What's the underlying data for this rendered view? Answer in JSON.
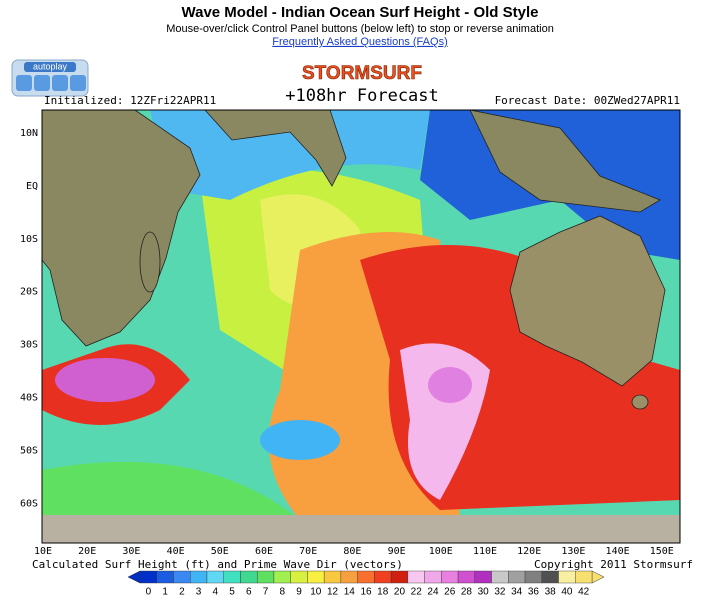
{
  "header": {
    "title": "Wave Model - Indian Ocean Surf Height - Old Style",
    "subtitle": "Mouse-over/click Control Panel buttons (below left) to stop or reverse animation",
    "link": "Frequently Asked Questions (FAQs)"
  },
  "controls": {
    "label": "autoplay"
  },
  "map": {
    "brand": "STORMSURF",
    "forecast": "+108hr Forecast",
    "initialized": "Initialized: 12ZFri22APR11",
    "forecast_date": "Forecast Date: 00ZWed27APR11",
    "lat_labels": [
      "10N",
      "EQ",
      "10S",
      "20S",
      "30S",
      "40S",
      "50S",
      "60S"
    ],
    "lon_labels": [
      "10E",
      "20E",
      "30E",
      "40E",
      "50E",
      "60E",
      "70E",
      "80E",
      "90E",
      "100E",
      "110E",
      "120E",
      "130E",
      "140E",
      "150E"
    ],
    "caption": "Calculated Surf Height (ft) and Prime Wave Dir (vectors)",
    "copyright": "Copyright 2011 Stormsurf"
  },
  "legend": {
    "values": [
      "0",
      "1",
      "2",
      "3",
      "4",
      "5",
      "6",
      "7",
      "8",
      "9",
      "10",
      "12",
      "14",
      "16",
      "18",
      "20",
      "22",
      "24",
      "26",
      "28",
      "30",
      "32",
      "34",
      "36",
      "38",
      "40",
      "42"
    ],
    "colors": [
      "#0030c8",
      "#1c5ce0",
      "#3a88f0",
      "#40b4f4",
      "#60d8f4",
      "#40e0c0",
      "#40d890",
      "#60e060",
      "#a0f050",
      "#d8f040",
      "#f8f040",
      "#f8c840",
      "#f8a040",
      "#f87030",
      "#f04020",
      "#d02010",
      "#f8c8f0",
      "#f0a8e8",
      "#e880e0",
      "#d050d0",
      "#b030c0",
      "#c8c8c8",
      "#a0a0a0",
      "#808080",
      "#505050",
      "#f8f0a0",
      "#f8e070"
    ]
  }
}
